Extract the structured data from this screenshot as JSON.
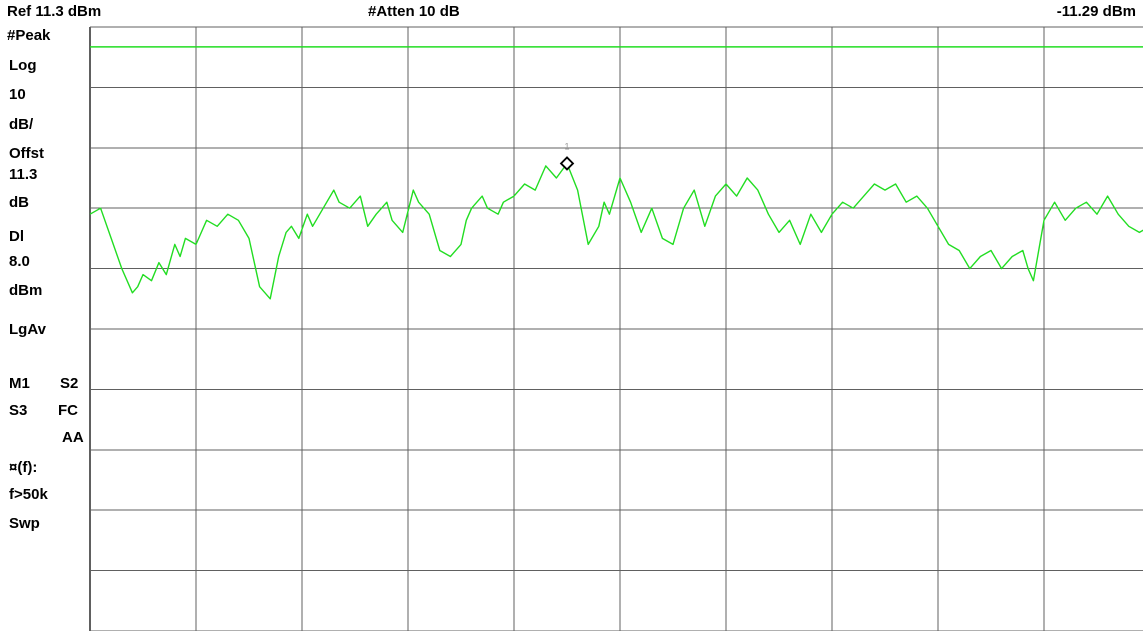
{
  "header": {
    "ref_level": "Ref 11.3 dBm",
    "attenuation": "#Atten 10 dB",
    "marker_readout": "-11.29 dBm"
  },
  "sidebar": {
    "detector": "#Peak",
    "scale_type": "Log",
    "scale_value": "10",
    "scale_unit": "dB/",
    "offset_label": "Offst",
    "offset_value": "11.3",
    "offset_unit": "dB",
    "display_line_label": "Dl",
    "display_line_value": "8.0",
    "display_line_unit": "dBm",
    "average_type": "LgAv",
    "trace_modes_row1_a": "M1",
    "trace_modes_row1_b": "S2",
    "trace_modes_row2_a": "S3",
    "trace_modes_row2_b": "FC",
    "trace_modes_row3": "AA",
    "function_label": "¤(f):",
    "function_value": "f>50k",
    "sweep_label": "Swp"
  },
  "colors": {
    "trace": "#22dd22",
    "display_line": "#22dd22",
    "grid": "#606060",
    "marker": "#000000",
    "marker_label": "#999999"
  },
  "chart_data": {
    "type": "line",
    "ref_level_dbm": 11.3,
    "db_per_div": 10,
    "vertical_divisions": 10,
    "horizontal_divisions": 10,
    "ylim": [
      -88.7,
      11.3
    ],
    "xlim": [
      0,
      10
    ],
    "grid": true,
    "display_line_dbm": 8.0,
    "marker": {
      "label": "1",
      "x": 4.5,
      "y": -11.29
    },
    "series": [
      {
        "x": [
          0,
          0.1,
          0.2,
          0.3,
          0.4,
          0.45,
          0.5,
          0.58,
          0.65,
          0.72,
          0.8,
          0.85,
          0.9,
          1.0,
          1.05,
          1.1,
          1.2,
          1.3,
          1.4,
          1.5,
          1.6,
          1.7,
          1.78,
          1.85,
          1.9,
          1.97,
          2.05,
          2.1,
          2.2,
          2.3,
          2.35,
          2.45,
          2.55,
          2.62,
          2.7,
          2.8,
          2.85,
          2.95,
          3.05,
          3.1,
          3.2,
          3.3,
          3.4,
          3.5,
          3.55,
          3.6,
          3.7,
          3.75,
          3.85,
          3.9,
          4.0,
          4.1,
          4.2,
          4.3,
          4.4,
          4.5,
          4.6,
          4.7,
          4.8,
          4.85,
          4.9,
          5.0,
          5.1,
          5.2,
          5.3,
          5.4,
          5.5,
          5.6,
          5.7,
          5.8,
          5.9,
          6.0,
          6.1,
          6.2,
          6.3,
          6.4,
          6.5,
          6.6,
          6.7,
          6.8,
          6.9,
          7.0,
          7.1,
          7.2,
          7.3,
          7.4,
          7.5,
          7.6,
          7.7,
          7.8,
          7.9,
          8.0,
          8.1,
          8.2,
          8.3,
          8.4,
          8.5,
          8.6,
          8.7,
          8.8,
          8.85,
          8.9,
          9.0,
          9.1,
          9.2,
          9.3,
          9.4,
          9.5,
          9.6,
          9.7,
          9.8,
          9.9,
          10.0
        ],
        "y": [
          -19.7,
          -18.7,
          -23.7,
          -28.7,
          -32.7,
          -31.7,
          -29.7,
          -30.7,
          -27.7,
          -29.7,
          -24.7,
          -26.7,
          -23.7,
          -24.7,
          -22.7,
          -20.7,
          -21.7,
          -19.7,
          -20.7,
          -23.7,
          -31.7,
          -33.7,
          -26.7,
          -22.7,
          -21.7,
          -23.7,
          -19.7,
          -21.7,
          -18.7,
          -15.7,
          -17.7,
          -18.7,
          -16.7,
          -21.7,
          -19.7,
          -17.7,
          -20.7,
          -22.7,
          -15.7,
          -17.7,
          -19.7,
          -25.7,
          -26.7,
          -24.7,
          -20.7,
          -18.7,
          -16.7,
          -18.7,
          -19.7,
          -17.7,
          -16.7,
          -14.7,
          -15.7,
          -11.7,
          -13.7,
          -11.3,
          -15.7,
          -24.7,
          -21.7,
          -17.7,
          -19.7,
          -13.7,
          -17.7,
          -22.7,
          -18.7,
          -23.7,
          -24.7,
          -18.7,
          -15.7,
          -21.7,
          -16.7,
          -14.7,
          -16.7,
          -13.7,
          -15.7,
          -19.7,
          -22.7,
          -20.7,
          -24.7,
          -19.7,
          -22.7,
          -19.7,
          -17.7,
          -18.7,
          -16.7,
          -14.7,
          -15.7,
          -14.7,
          -17.7,
          -16.7,
          -18.7,
          -21.7,
          -24.7,
          -25.7,
          -28.7,
          -26.7,
          -25.7,
          -28.7,
          -26.7,
          -25.7,
          -28.7,
          -30.7,
          -20.7,
          -17.7,
          -20.7,
          -18.7,
          -17.7,
          -19.7,
          -16.7,
          -19.7,
          -21.7,
          -22.7,
          -21.7
        ]
      }
    ]
  }
}
